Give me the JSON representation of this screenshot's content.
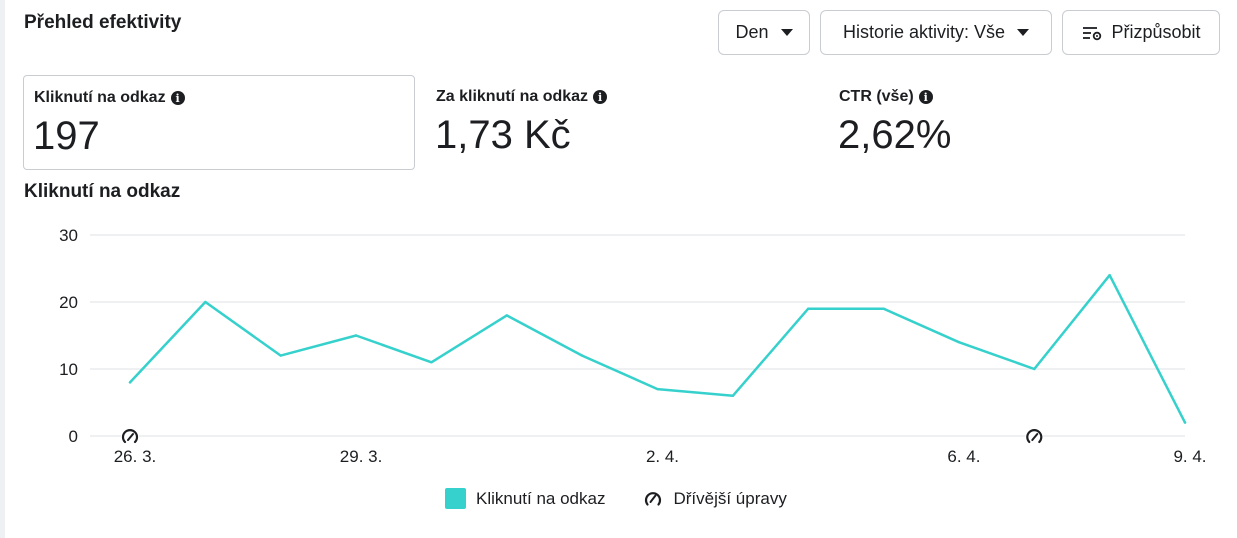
{
  "header": {
    "title": "Přehled efektivity",
    "period_button": "Den",
    "history_button": "Historie aktivity: Vše",
    "customize_button": "Přizpůsobit"
  },
  "metrics": [
    {
      "label": "Kliknutí na odkaz",
      "value": "197"
    },
    {
      "label": "Za kliknutí na odkaz",
      "value": "1,73 Kč"
    },
    {
      "label": "CTR (vše)",
      "value": "2,62%"
    }
  ],
  "chart_title": "Kliknutí na odkaz",
  "legend": {
    "series_label": "Kliknutí na odkaz",
    "edits_label": "Dřívější úpravy"
  },
  "colors": {
    "series": "#36d1cc",
    "grid": "#e4e6eb",
    "text": "#1c1e21"
  },
  "chart_data": {
    "type": "line",
    "x": [
      "26. 3.",
      "27. 3.",
      "28. 3.",
      "29. 3.",
      "30. 3.",
      "31. 3.",
      "1. 4.",
      "2. 4.",
      "3. 4.",
      "4. 4.",
      "5. 4.",
      "6. 4.",
      "7. 4.",
      "8. 4.",
      "9. 4."
    ],
    "x_tick_labels": [
      "26. 3.",
      "29. 3.",
      "2. 4.",
      "6. 4.",
      "9. 4."
    ],
    "series": [
      {
        "name": "Kliknutí na odkaz",
        "values": [
          8,
          20,
          12,
          15,
          11,
          18,
          12,
          7,
          6,
          19,
          19,
          14,
          10,
          24,
          2
        ]
      }
    ],
    "edit_markers_at": [
      "26. 3.",
      "7. 4."
    ],
    "ylim": [
      0,
      30
    ],
    "y_ticks": [
      0,
      10,
      20,
      30
    ],
    "grid": true,
    "legend_position": "bottom"
  }
}
